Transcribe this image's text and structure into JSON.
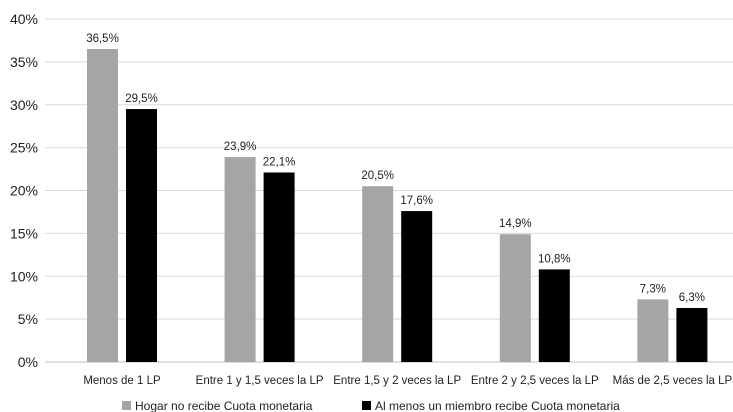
{
  "chart_data": {
    "type": "bar",
    "categories": [
      "Menos de 1 LP",
      "Entre 1 y 1,5 veces la LP",
      "Entre 1,5 y 2 veces la LP",
      "Entre 2 y 2,5 veces la LP",
      "Más de 2,5 veces la LP"
    ],
    "series": [
      {
        "name": "Hogar no recibe Cuota monetaria",
        "values": [
          36.5,
          23.9,
          20.5,
          14.9,
          7.3
        ],
        "labels": [
          "36,5%",
          "23,9%",
          "20,5%",
          "14,9%",
          "7,3%"
        ],
        "color": "#a6a4a4"
      },
      {
        "name": "Al menos un miembro recibe Cuota monetaria",
        "values": [
          29.5,
          22.1,
          17.6,
          10.8,
          6.3
        ],
        "labels": [
          "29,5%",
          "22,1%",
          "17,6%",
          "10,8%",
          "6,3%"
        ],
        "color": "#000000"
      }
    ],
    "yticks": [
      "0%",
      "5%",
      "10%",
      "15%",
      "20%",
      "25%",
      "30%",
      "35%",
      "40%"
    ],
    "ylim": [
      0,
      40
    ],
    "grid": true,
    "gridColor": "#d9d9d9",
    "legend": "bottom"
  }
}
